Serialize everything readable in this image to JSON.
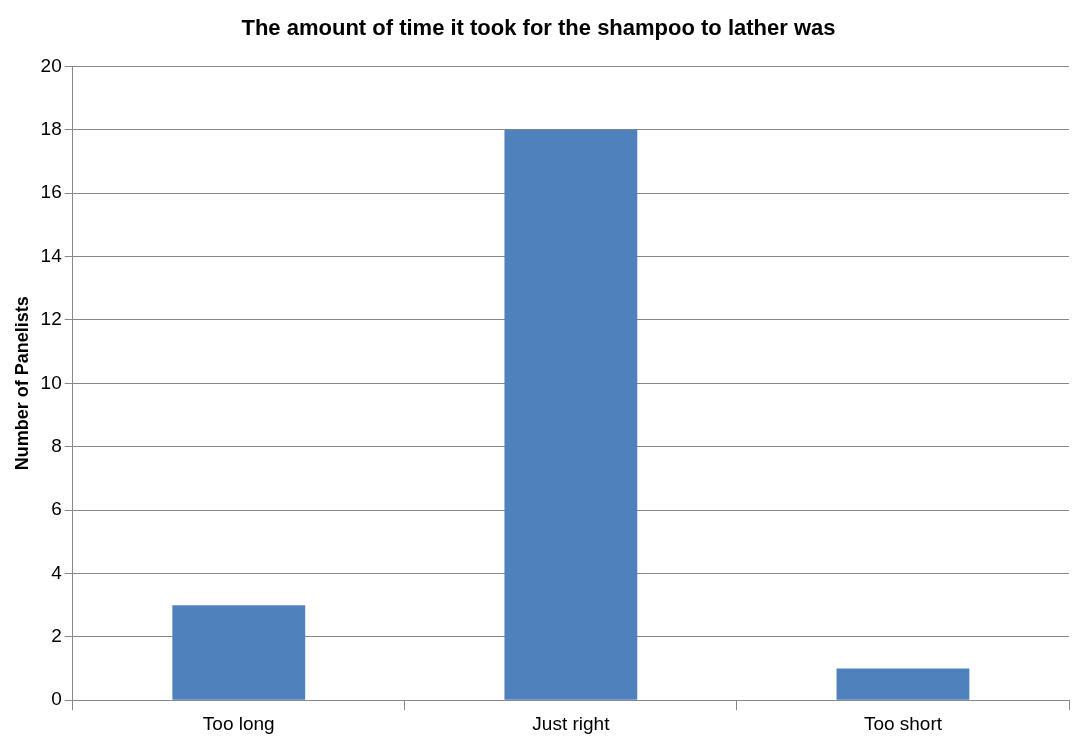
{
  "chart_data": {
    "type": "bar",
    "title": "The amount of time it took for the shampoo to lather was",
    "ylabel": "Number of Panelists",
    "categories": [
      "Too long",
      "Just right",
      "Too short"
    ],
    "values": [
      3,
      18,
      1
    ],
    "color": "#4f81bd",
    "ylim": [
      0,
      20
    ],
    "yticks": [
      0,
      2,
      4,
      6,
      8,
      10,
      12,
      14,
      16,
      18,
      20
    ],
    "grid": "y",
    "legend": false
  }
}
